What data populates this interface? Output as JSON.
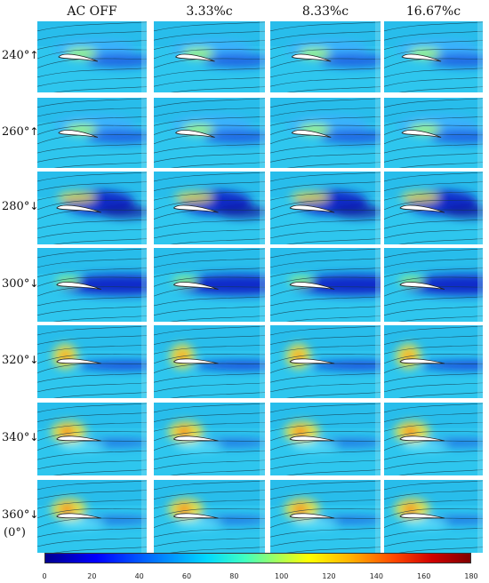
{
  "columns": [
    {
      "label": "AC OFF"
    },
    {
      "label": "3.33%c"
    },
    {
      "label": "8.33%c"
    },
    {
      "label": "16.67%c"
    }
  ],
  "rows": [
    {
      "angle": "240°",
      "arrow": "↑",
      "sub": "",
      "state": "attached"
    },
    {
      "angle": "260°",
      "arrow": "↑",
      "sub": "",
      "state": "attached"
    },
    {
      "angle": "280°",
      "arrow": "↓",
      "sub": "",
      "state": "vortex"
    },
    {
      "angle": "300°",
      "arrow": "↓",
      "sub": "",
      "state": "separated"
    },
    {
      "angle": "320°",
      "arrow": "↓",
      "sub": "",
      "state": "reattaching"
    },
    {
      "angle": "340°",
      "arrow": "↓",
      "sub": "",
      "state": "low-aoa"
    },
    {
      "angle": "360°",
      "arrow": "↓",
      "sub": "(0°)",
      "state": "low-aoa"
    }
  ],
  "colorbar": {
    "ticks": [
      "0",
      "20",
      "40",
      "60",
      "80",
      "100",
      "120",
      "140",
      "160",
      "180"
    ],
    "min": 0,
    "max": 180,
    "colormap": "jet"
  },
  "colors": {
    "freestream": "#2ec6ee",
    "wake": "#0a22c8",
    "highspeed": "#f6e43c",
    "airfoil": "#ffffff"
  }
}
